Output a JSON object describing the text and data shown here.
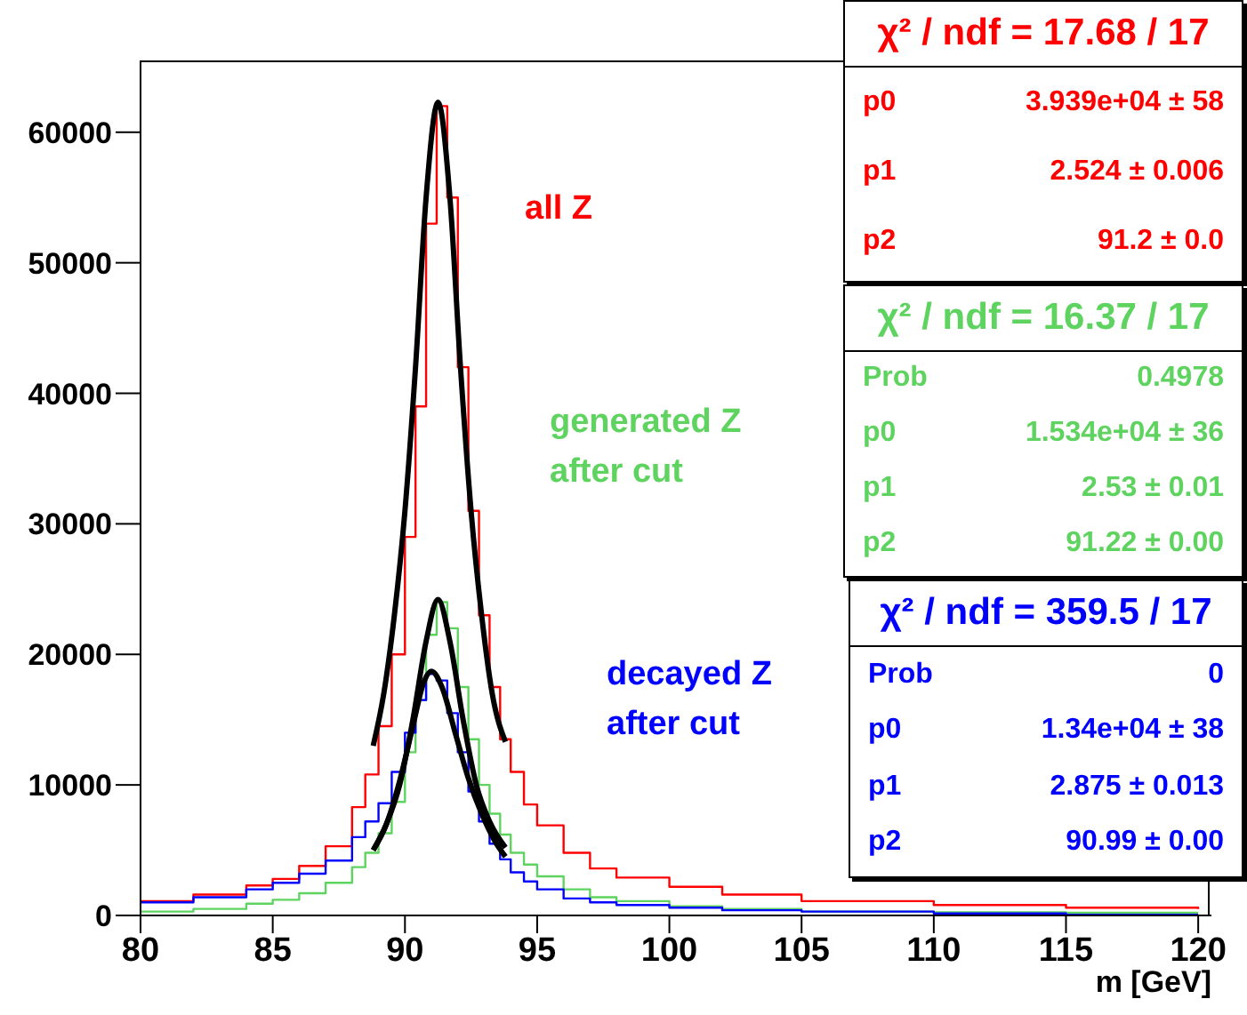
{
  "chart_data": {
    "type": "step",
    "xlabel": "m [GeV]",
    "xlim": [
      80,
      120.5
    ],
    "xticks": [
      80,
      85,
      90,
      95,
      100,
      105,
      110,
      115,
      120
    ],
    "ylim": [
      0,
      65500
    ],
    "yticks": [
      0,
      10000,
      20000,
      30000,
      40000,
      50000,
      60000
    ],
    "grid": false,
    "series": [
      {
        "name": "all Z",
        "color": "#ff0000",
        "x": [
          80,
          82,
          84,
          85,
          86,
          87,
          88,
          88.5,
          89,
          89.5,
          90,
          90.4,
          90.8,
          91.2,
          91.6,
          92,
          92.4,
          92.8,
          93.2,
          93.6,
          94,
          94.5,
          95,
          96,
          97,
          98,
          100,
          102,
          105,
          110,
          115,
          120
        ],
        "values": [
          1100,
          1600,
          2300,
          2800,
          3800,
          5300,
          8300,
          10800,
          14500,
          20000,
          29000,
          39000,
          53000,
          62000,
          55000,
          42000,
          31000,
          23000,
          17500,
          13500,
          11000,
          8500,
          6900,
          4800,
          3600,
          2900,
          2200,
          1600,
          1100,
          800,
          600,
          500
        ]
      },
      {
        "name": "generated Z after cut",
        "color": "#5fd35f",
        "x": [
          80,
          82,
          84,
          85,
          86,
          87,
          88,
          88.5,
          89,
          89.5,
          90,
          90.4,
          90.8,
          91.2,
          91.6,
          92,
          92.4,
          92.8,
          93.2,
          93.6,
          94,
          94.5,
          95,
          96,
          97,
          98,
          100,
          102,
          105,
          110,
          115,
          120
        ],
        "values": [
          300,
          500,
          900,
          1200,
          1700,
          2500,
          3700,
          4800,
          6300,
          8700,
          12500,
          16500,
          21500,
          24000,
          22000,
          17500,
          13500,
          10000,
          7800,
          6200,
          4800,
          3900,
          3000,
          2000,
          1400,
          1100,
          700,
          500,
          300,
          250,
          200,
          200
        ]
      },
      {
        "name": "decayed Z after cut",
        "color": "#0000ff",
        "x": [
          80,
          82,
          84,
          85,
          86,
          87,
          88,
          88.5,
          89,
          89.5,
          90,
          90.4,
          90.8,
          91.2,
          91.6,
          92,
          92.4,
          92.8,
          93.2,
          93.6,
          94,
          94.5,
          95,
          96,
          97,
          98,
          100,
          102,
          105,
          110,
          115,
          120
        ],
        "values": [
          1000,
          1400,
          2000,
          2500,
          3200,
          4200,
          6000,
          7200,
          8600,
          11000,
          14000,
          16500,
          18500,
          18000,
          15500,
          12500,
          9500,
          7200,
          5500,
          4300,
          3300,
          2600,
          2000,
          1300,
          1000,
          800,
          600,
          400,
          300,
          150,
          50,
          50
        ]
      },
      {
        "type": "line",
        "color": "#000000",
        "x": [
          88.8,
          89.2,
          89.6,
          90,
          90.4,
          90.8,
          91.25,
          91.7,
          92.1,
          92.5,
          92.9,
          93.3,
          93.8
        ],
        "values": [
          13000,
          17000,
          23000,
          31000,
          42000,
          55000,
          62300,
          55000,
          42000,
          31000,
          23000,
          17000,
          13300
        ]
      },
      {
        "type": "line",
        "color": "#000000",
        "x": [
          88.8,
          89.3,
          89.8,
          90.3,
          90.8,
          91.25,
          91.7,
          92.2,
          92.7,
          93.2,
          93.8
        ],
        "values": [
          5000,
          7000,
          10000,
          15000,
          21000,
          24200,
          21000,
          15000,
          10000,
          7200,
          5200
        ]
      },
      {
        "type": "line",
        "color": "#000000",
        "x": [
          88.8,
          89.3,
          89.8,
          90.3,
          90.7,
          91.0,
          91.4,
          91.9,
          92.4,
          92.9,
          93.4,
          93.8
        ],
        "values": [
          5000,
          7000,
          10300,
          14500,
          17800,
          18700,
          17500,
          14000,
          10500,
          7800,
          5700,
          4500
        ]
      }
    ],
    "annotations": [
      "χ² / ndf = 17.68 / 17",
      "p0",
      "3.939e+04 ± 58",
      "p1",
      "2.524 ± 0.006",
      "p2",
      "91.2 ± 0.0",
      "χ² / ndf = 16.37 / 17",
      "Prob",
      "0.4978",
      "p0",
      "1.534e+04 ± 36",
      "p1",
      "2.53 ± 0.01",
      "p2",
      "91.22 ± 0.00",
      "χ² / ndf = 359.5 / 17",
      "Prob",
      "0",
      "p0",
      "1.34e+04 ± 38",
      "p1",
      "2.875 ± 0.013",
      "p2",
      "90.99 ± 0.00"
    ]
  }
}
